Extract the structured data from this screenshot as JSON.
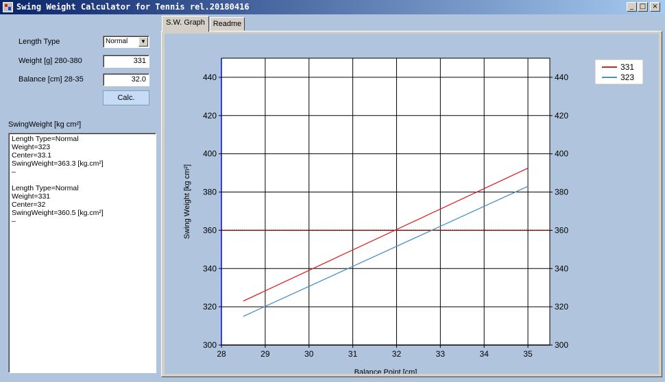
{
  "window": {
    "title": "Swing Weight Calculator for Tennis rel.20180416",
    "controls": {
      "minimize": "_",
      "maximize": "□",
      "close": "×"
    }
  },
  "form": {
    "length_type_label": "Length Type",
    "length_type_value": "Normal",
    "weight_label": "Weight [g] 280-380",
    "weight_value": "331",
    "balance_label": "Balance [cm] 28-35",
    "balance_value": "32.0",
    "calc_label": "Calc.",
    "output_label": "SwingWeight [kg cm²]",
    "output_text": "Length Type=Normal\nWeight=323\nCenter=33.1\nSwingWeight=363.3 [kg.cm²]\n–\n\nLength Type=Normal\nWeight=331\nCenter=32\nSwingWeight=360.5 [kg.cm²]\n–"
  },
  "tabs": [
    {
      "label": "S.W. Graph",
      "active": true
    },
    {
      "label": "Readme",
      "active": false
    }
  ],
  "chart_data": {
    "type": "line",
    "xlabel": "Balance Point [cm]",
    "ylabel": "Swing Weight [kg cm²]",
    "xlim": [
      28,
      35.5
    ],
    "ylim": [
      300,
      450
    ],
    "x_ticks": [
      28,
      29,
      30,
      31,
      32,
      33,
      34,
      35
    ],
    "y_ticks": [
      300,
      320,
      340,
      360,
      380,
      400,
      420,
      440
    ],
    "grid": true,
    "legend_position": "top-right",
    "reference_line": {
      "y": 360,
      "color": "#800000"
    },
    "series": [
      {
        "name": "331",
        "color": "#e02020",
        "x": [
          28.5,
          35
        ],
        "y": [
          323,
          392.5
        ]
      },
      {
        "name": "323",
        "color": "#4a90c8",
        "x": [
          28.5,
          35
        ],
        "y": [
          315,
          383
        ]
      }
    ]
  }
}
